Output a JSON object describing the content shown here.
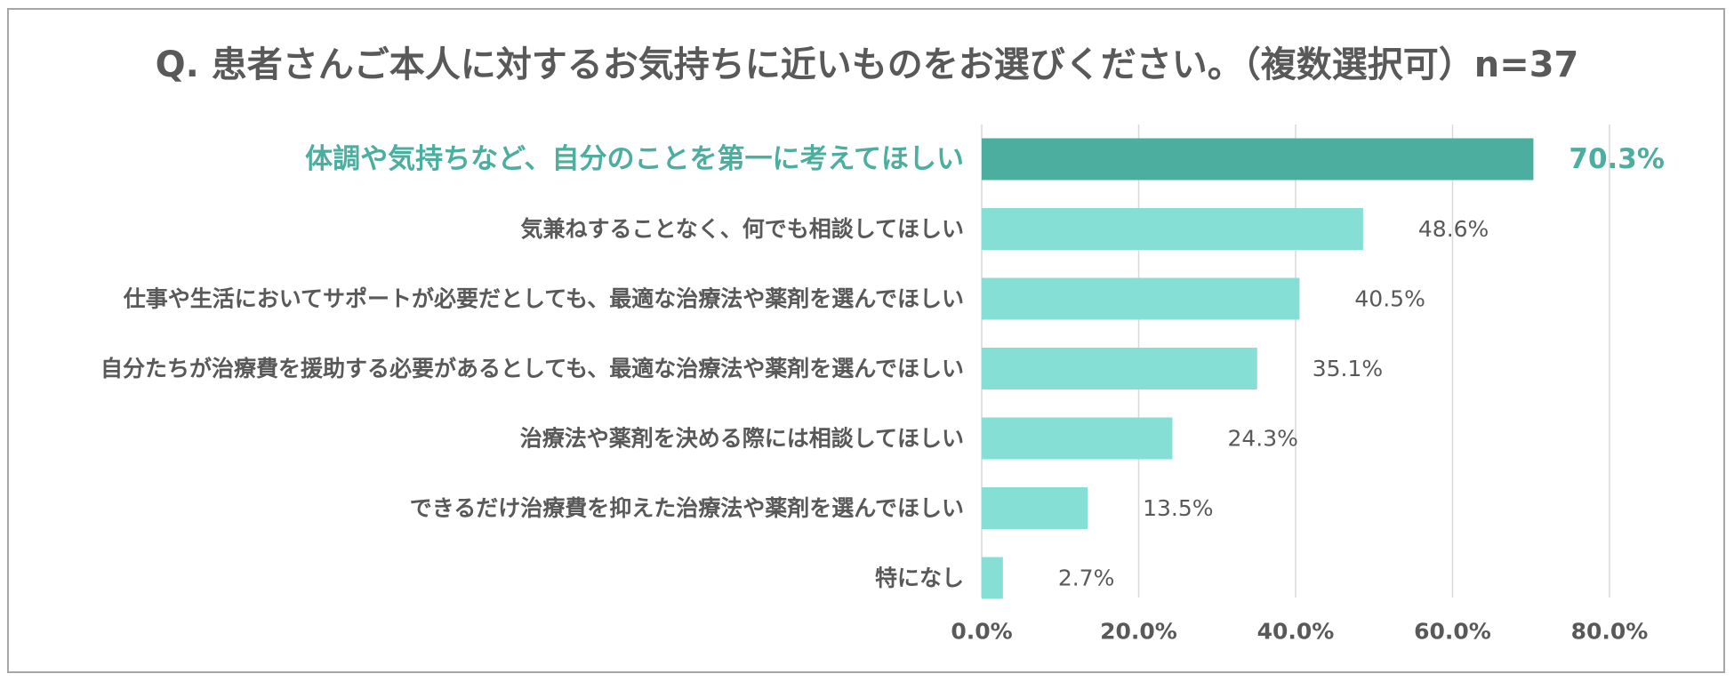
{
  "title": "Q. 患者さんご本人に対するお気持ちに近いものをお選びください。（複数選択可）n=37",
  "colors": {
    "bar": "#85dfd4",
    "highlight_bar": "#4cae9f",
    "highlight_text": "#4cae9f",
    "text": "#595959",
    "grid": "#d9d9d9",
    "border": "#a6a6a6"
  },
  "chart_data": {
    "type": "bar",
    "orientation": "horizontal",
    "categories": [
      "体調や気持ちなど、自分のことを第一に考えてほしい",
      "気兼ねすることなく、何でも相談してほしい",
      "仕事や生活においてサポートが必要だとしても、最適な治療法や薬剤を選んでほしい",
      "自分たちが治療費を援助する必要があるとしても、最適な治療法や薬剤を選んでほしい",
      "治療法や薬剤を決める際には相談してほしい",
      "できるだけ治療費を抑えた治療法や薬剤を選んでほしい",
      "特になし"
    ],
    "values": [
      70.3,
      48.6,
      40.5,
      35.1,
      24.3,
      13.5,
      2.7
    ],
    "value_labels": [
      "70.3%",
      "48.6%",
      "40.5%",
      "35.1%",
      "24.3%",
      "13.5%",
      "2.7%"
    ],
    "highlight_index": 0,
    "xlim": [
      0,
      80
    ],
    "xticks": [
      0,
      20,
      40,
      60,
      80
    ],
    "xtick_labels": [
      "0.0%",
      "20.0%",
      "40.0%",
      "60.0%",
      "80.0%"
    ],
    "grid": "vertical",
    "legend": "none"
  }
}
